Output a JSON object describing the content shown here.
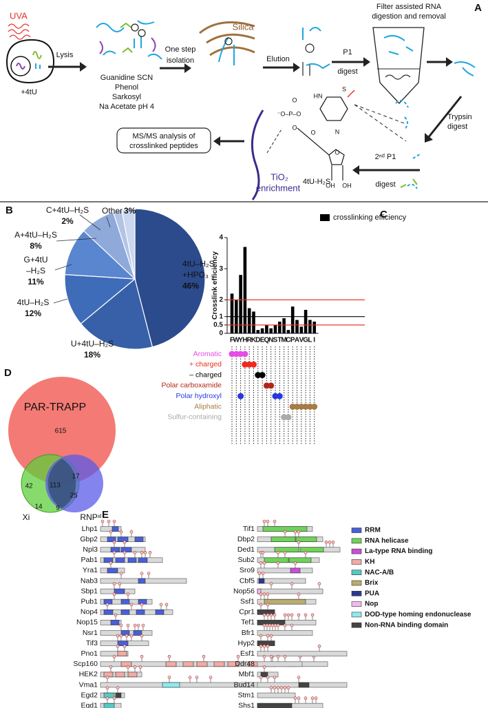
{
  "panel_a": {
    "label": "A",
    "uva": "UVA",
    "label_4tu": "+4tU",
    "lysis": "Lysis",
    "buffer": [
      "Guanidine SCN",
      "Phenol",
      "Sarkosyl",
      "Na Acetate pH 4"
    ],
    "isolation": [
      "One step",
      "isolation"
    ],
    "silica": "Silica",
    "elution": "Elution",
    "p1_digest": [
      "P1",
      "digest"
    ],
    "filter": [
      "Filter assisted RNA",
      "digestion and removal"
    ],
    "trypsin": [
      "Trypsin",
      "digest"
    ],
    "second_p1": [
      "2ⁿᵈ P1",
      "digest"
    ],
    "compound": "4tU-H₂S",
    "tio2": [
      "TiO₂",
      "enrichment"
    ],
    "ms_box": [
      "MS/MS analysis of",
      "crosslinked peptides"
    ],
    "atoms": [
      "O",
      "⁻O–P–O",
      "O",
      "HN",
      "O",
      "N",
      "S",
      "O",
      "OH",
      "OH"
    ]
  },
  "chart_data": [
    {
      "type": "pie",
      "label": "B",
      "categories": [
        [
          "4tU–H₂S",
          "+HPO₃"
        ],
        [
          "U+4tU–H₂S"
        ],
        [
          "4tU–H₂S"
        ],
        [
          "G+4tU",
          "–H₂S"
        ],
        [
          "A+4tU–H₂S"
        ],
        [
          "C+4tU–H₂S"
        ],
        [
          "Other"
        ]
      ],
      "values": [
        46,
        18,
        12,
        11,
        8,
        2,
        3
      ],
      "value_labels": [
        "46%",
        "18%",
        "12%",
        "11%",
        "8%",
        "2%",
        "3%"
      ],
      "colors": [
        "#2c4b8c",
        "#3760a8",
        "#3f6cb8",
        "#5a86cf",
        "#8ea9da",
        "#b2c4e6",
        "#cbd7ef"
      ]
    },
    {
      "type": "bar",
      "label": "C",
      "ylabel": "Crosslink efficiency",
      "categories": [
        "F",
        "W",
        "Y",
        "H",
        "R",
        "K",
        "D",
        "E",
        "Q",
        "N",
        "S",
        "T",
        "M",
        "C",
        "P",
        "A",
        "V",
        "G",
        "L",
        "I"
      ],
      "series": [
        {
          "name": "crosslinking efficiency",
          "color": "#000000",
          "values": [
            2.2,
            2.0,
            2.8,
            3.7,
            1.5,
            1.3,
            0.2,
            0.3,
            0.5,
            0.3,
            0.5,
            0.7,
            0.9,
            0.2,
            1.6,
            0.8,
            0.4,
            1.4,
            0.8,
            0.7
          ]
        }
      ],
      "ylim": [
        0,
        4
      ],
      "yticks": [
        0,
        0.5,
        1,
        2,
        3,
        4
      ],
      "axis_break": 2,
      "reference_lines": [
        {
          "value": 2,
          "color": "#e8392a"
        },
        {
          "value": 1,
          "color": "#000000"
        },
        {
          "value": 0.5,
          "color": "#e8392a"
        }
      ],
      "groups": [
        {
          "name": "Aromatic",
          "color": "#e64ce6",
          "members": [
            0,
            1,
            2,
            3
          ]
        },
        {
          "name": "+ charged",
          "color": "#ee2a1e",
          "members": [
            3,
            4,
            5
          ]
        },
        {
          "name": "– charged",
          "color": "#000000",
          "members": [
            6,
            7
          ]
        },
        {
          "name": "Polar  carboxamide",
          "color": "#b22618",
          "members": [
            8,
            9
          ]
        },
        {
          "name": "Polar hydroxyl",
          "color": "#2438e0",
          "members": [
            2,
            10,
            11
          ]
        },
        {
          "name": "Aliphatic",
          "color": "#a57c45",
          "members": [
            14,
            15,
            16,
            17,
            18,
            19
          ]
        },
        {
          "name": "Sulfur-containing",
          "color": "#aaaaaa",
          "members": [
            12,
            13
          ]
        }
      ]
    }
  ],
  "panel_d": {
    "label": "D",
    "sets": [
      {
        "name": "PAR-TRAPP",
        "color": "#f47a75"
      },
      {
        "name": "Xi",
        "color": "#5fcf3c"
      },
      {
        "name": "RNPˣˡ",
        "color": "#5b5be8"
      }
    ],
    "regions": {
      "par_only": 615,
      "par_xi": 42,
      "all": 113,
      "par_rnp": 17,
      "rnp_only": 25,
      "xi_only": 14,
      "xi_rnp": 9
    }
  },
  "panel_e": {
    "label": "E",
    "left": [
      "Lhp1",
      "Gbp2",
      "Npl3",
      "Pab1",
      "Yra1",
      "Nab3",
      "Sbp1",
      "Pub1",
      "Nop4",
      "Nop15",
      "Nsr1",
      "Tif3",
      "Pno1",
      "Scp160",
      "HEK2",
      "Vma1",
      "Egd2",
      "Egd1"
    ],
    "right": [
      "Tif1",
      "Dbp2",
      "Ded1",
      "Sub2",
      "Sro9",
      "Cbf5",
      "Nop56",
      "Ssf1",
      "Cpr1",
      "Tef1",
      "Bfr1",
      "Hyp2",
      "Esf1",
      "Ddr48",
      "Mbf1",
      "Bud14",
      "Stm1",
      "Shs1"
    ],
    "legend": [
      {
        "name": "RRM",
        "color": "#4a5fd8"
      },
      {
        "name": "RNA helicase",
        "color": "#6fd35a"
      },
      {
        "name": "La-type RNA binding",
        "color": "#c84fd6"
      },
      {
        "name": "KH",
        "color": "#f2aaa5"
      },
      {
        "name": "NAC-A/B",
        "color": "#54c9c3"
      },
      {
        "name": "Brix",
        "color": "#b8ad6e"
      },
      {
        "name": "PUA",
        "color": "#2b3a8e"
      },
      {
        "name": "Nop",
        "color": "#f3b8ef"
      },
      {
        "name": "DOD-type homing endonuclease",
        "color": "#8fe8ef"
      },
      {
        "name": "Non-RNA binding domain",
        "color": "#444444"
      }
    ]
  }
}
